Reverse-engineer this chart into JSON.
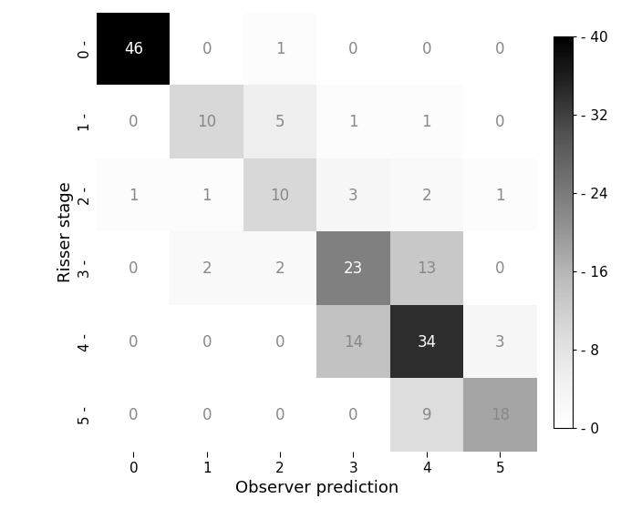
{
  "matrix": [
    [
      46,
      0,
      1,
      0,
      0,
      0
    ],
    [
      0,
      10,
      5,
      1,
      1,
      0
    ],
    [
      1,
      1,
      10,
      3,
      2,
      1
    ],
    [
      0,
      2,
      2,
      23,
      13,
      0
    ],
    [
      0,
      0,
      0,
      14,
      34,
      3
    ],
    [
      0,
      0,
      0,
      0,
      9,
      18
    ]
  ],
  "xlabel": "Observer prediction",
  "ylabel": "Risser stage",
  "tick_labels": [
    "0",
    "1",
    "2",
    "3",
    "4",
    "5"
  ],
  "colorbar_ticks": [
    0,
    8,
    16,
    24,
    32,
    40
  ],
  "vmin": 0,
  "vmax": 40,
  "cmap": "Greys",
  "text_color_threshold": 20,
  "white_text_color": "#ffffff",
  "dark_text_color": "#888888",
  "fontsize_cell": 12,
  "fontsize_axis_label": 13,
  "fontsize_tick": 11,
  "fontsize_colorbar_tick": 11
}
